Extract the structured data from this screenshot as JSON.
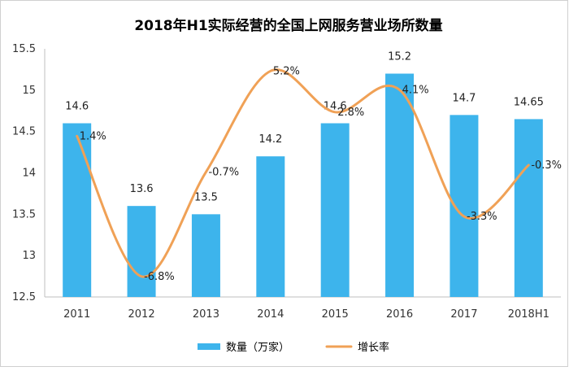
{
  "chart_data": {
    "type": "bar",
    "title": "2018年H1实际经营的全国上网服务营业场所数量",
    "categories": [
      "2011",
      "2012",
      "2013",
      "2014",
      "2015",
      "2016",
      "2017",
      "2018H1"
    ],
    "y_ticks": [
      "15.5",
      "15",
      "14.5",
      "14",
      "13.5",
      "13",
      "12.5"
    ],
    "ylim": [
      12.5,
      15.5
    ],
    "grid": false,
    "legend_position": "bottom",
    "series": [
      {
        "name": "数量（万家）",
        "type": "bar",
        "values": [
          14.6,
          13.6,
          13.5,
          14.2,
          14.6,
          15.2,
          14.7,
          14.65
        ],
        "labels": [
          "14.6",
          "13.6",
          "13.5",
          "14.2",
          "14.6",
          "15.2",
          "14.7",
          "14.65"
        ],
        "color": "#3DB4EC"
      },
      {
        "name": "增长率",
        "type": "line",
        "smooth": true,
        "values_percent": [
          1.4,
          -6.8,
          -0.7,
          5.2,
          2.8,
          4.1,
          -3.3,
          -0.3
        ],
        "labels": [
          "1.4%",
          "-6.8%",
          "-0.7%",
          "5.2%",
          "2.8%",
          "4.1%",
          "-3.3%",
          "-0.3%"
        ],
        "color": "#F0A156"
      }
    ]
  }
}
